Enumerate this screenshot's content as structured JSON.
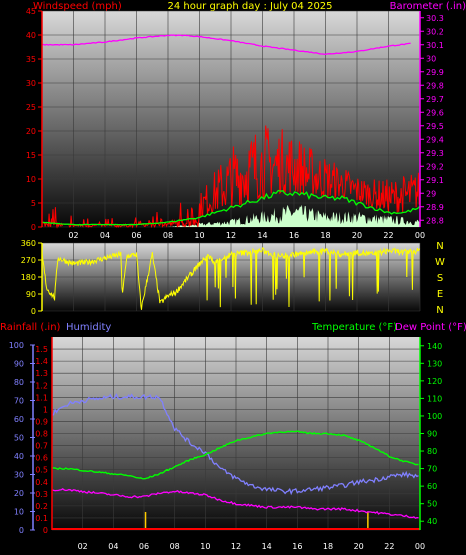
{
  "header": {
    "left_title": "Windspeed (mph)",
    "center_title": "24 hour graph day : July 04 2025",
    "right_title": "Barometer (.in)"
  },
  "lower_header": {
    "rainfall_label": "Rainfall (.in)",
    "humidity_label": "Humidity",
    "temperature_label": "Temperature (°F)",
    "dewpoint_label": "Dew Point (°F)"
  },
  "compass": [
    "N",
    "W",
    "S",
    "E",
    "N"
  ],
  "colors": {
    "windspeed": "#ff0000",
    "windspeed_avg": "#00ff00",
    "gust_fill": "#ccffcc",
    "barometer": "#ff00ff",
    "direction": "#ffff00",
    "rainfall": "#ff0000",
    "humidity": "#8080ff",
    "temperature": "#00ff00",
    "dewpoint": "#ff00ff",
    "rain_marks": "#ffcc00"
  },
  "chart_data": [
    {
      "type": "line",
      "panel": "wind-barometer",
      "x_tick_labels": [
        "02",
        "04",
        "06",
        "08",
        "10",
        "12",
        "14",
        "16",
        "18",
        "20",
        "22",
        "00"
      ],
      "y_left_ticks": [
        "0",
        "5",
        "10",
        "15",
        "20",
        "25",
        "30",
        "35",
        "40",
        "45"
      ],
      "y_left_range": [
        0,
        45
      ],
      "y_right_ticks": [
        "28.8",
        "28.9",
        "29",
        "29.1",
        "29.2",
        "29.3",
        "29.4",
        "29.5",
        "29.6",
        "29.7",
        "29.8",
        "29.9",
        "30",
        "30.1",
        "30.2",
        "30.3"
      ],
      "y_right_range": [
        28.75,
        30.35
      ],
      "barometer": {
        "x": [
          0,
          2,
          4,
          6,
          8,
          9,
          10,
          12,
          14,
          16,
          18,
          20,
          22,
          23.5
        ],
        "values": [
          30.1,
          30.1,
          30.12,
          30.15,
          30.17,
          30.17,
          30.16,
          30.13,
          30.09,
          30.06,
          30.03,
          30.05,
          30.09,
          30.11
        ]
      },
      "windspeed_avg": {
        "x": [
          0,
          2,
          4,
          6,
          8,
          10,
          11,
          12,
          13,
          14,
          15,
          16,
          17,
          18,
          19,
          20,
          21,
          22,
          23,
          24
        ],
        "values": [
          1,
          0.5,
          0.5,
          0.5,
          1,
          2,
          3,
          4,
          5,
          6,
          7,
          7,
          6.5,
          6,
          6,
          5,
          4,
          3,
          3,
          4
        ]
      },
      "windspeed_max": {
        "x": [
          0,
          2,
          4,
          6,
          8,
          10,
          11,
          12,
          13,
          14,
          15,
          16,
          17,
          18,
          19,
          20,
          21,
          22,
          23,
          24
        ],
        "values": [
          5,
          3,
          2,
          2,
          4,
          7,
          12,
          17,
          20,
          22,
          21,
          20,
          17,
          15,
          13,
          11,
          10,
          10,
          11,
          12
        ]
      },
      "gust_base": {
        "x": [
          0,
          8,
          10,
          12,
          14,
          16,
          18,
          20,
          22,
          24
        ],
        "values": [
          0,
          0,
          0.5,
          1,
          2,
          3,
          2,
          2,
          1.5,
          1
        ]
      }
    },
    {
      "type": "line",
      "panel": "wind-direction",
      "y_ticks": [
        "0",
        "90",
        "180",
        "270",
        "360"
      ],
      "y_range": [
        0,
        360
      ],
      "x": [
        0,
        0.3,
        0.8,
        1,
        2,
        3,
        3.5,
        4,
        4.5,
        5,
        5.1,
        5.4,
        6,
        6.3,
        7,
        7.5,
        8,
        8.5,
        9,
        9.5,
        10,
        10.5,
        11,
        12,
        13,
        14,
        15,
        16,
        17,
        18,
        19,
        20,
        21,
        22,
        23,
        24
      ],
      "values": [
        300,
        120,
        70,
        280,
        250,
        260,
        270,
        280,
        290,
        300,
        90,
        290,
        300,
        10,
        300,
        40,
        80,
        100,
        150,
        200,
        250,
        290,
        260,
        300,
        310,
        320,
        290,
        300,
        310,
        320,
        300,
        310,
        300,
        320,
        310,
        320
      ]
    },
    {
      "type": "line",
      "panel": "rain-humidity-temp",
      "y_left_rain_ticks": [
        "0",
        "0.1",
        "0.2",
        "0.3",
        "0.4",
        "0.5",
        "0.6",
        "0.7",
        "0.8",
        "0.9",
        "1",
        "1.1",
        "1.2",
        "1.3",
        "1.4",
        "1.5"
      ],
      "y_left_rain_range": [
        0,
        1.5
      ],
      "y_left_humidity_ticks": [
        "0",
        "10",
        "20",
        "30",
        "40",
        "50",
        "60",
        "70",
        "80",
        "90",
        "100"
      ],
      "y_left_humidity_range": [
        0,
        100
      ],
      "y_right_ticks": [
        "40",
        "50",
        "60",
        "70",
        "80",
        "90",
        "100",
        "110",
        "120",
        "130",
        "140"
      ],
      "y_right_range": [
        40,
        140
      ],
      "humidity": {
        "x": [
          0,
          1,
          2,
          3,
          4,
          5,
          6,
          7,
          8,
          9,
          10,
          11,
          12,
          13,
          14,
          15,
          16,
          17,
          18,
          19,
          20,
          21,
          22,
          23,
          24
        ],
        "values": [
          63,
          68,
          70,
          71,
          72,
          72,
          72,
          72,
          55,
          47,
          42,
          33,
          28,
          24,
          22,
          21,
          21,
          22,
          23,
          24,
          26,
          27,
          29,
          30,
          29
        ]
      },
      "temperature": {
        "x": [
          0,
          1,
          2,
          3,
          4,
          5,
          6,
          7,
          8,
          9,
          10,
          11,
          12,
          13,
          14,
          15,
          16,
          17,
          18,
          19,
          20,
          21,
          22,
          23,
          24
        ],
        "values": [
          70,
          70,
          69,
          68,
          67,
          66,
          64,
          67,
          71,
          75,
          78,
          82,
          86,
          88,
          90,
          91,
          91,
          90,
          90,
          89,
          86,
          82,
          77,
          74,
          72
        ]
      },
      "dewpoint": {
        "x": [
          0,
          1,
          2,
          3,
          4,
          5,
          6,
          7,
          8,
          9,
          10,
          11,
          12,
          13,
          14,
          15,
          16,
          17,
          18,
          19,
          20,
          21,
          22,
          23,
          24
        ],
        "values": [
          58,
          58,
          57,
          56,
          55,
          54,
          54,
          56,
          57,
          56,
          55,
          52,
          50,
          49,
          48,
          48,
          48,
          47,
          47,
          47,
          46,
          45,
          44,
          43,
          42
        ]
      },
      "rainfall": {
        "x": [
          0,
          24
        ],
        "values": [
          0,
          0
        ]
      },
      "rain_events_hour": [
        6.1,
        20.6
      ]
    }
  ]
}
